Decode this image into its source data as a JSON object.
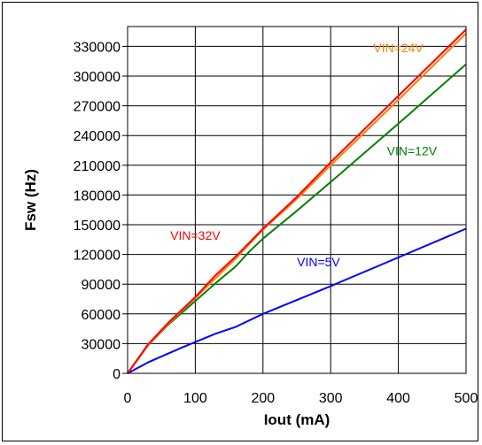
{
  "chart_data": {
    "type": "line",
    "title": "",
    "xlabel": "Iout (mA)",
    "ylabel": "Fsw (Hz)",
    "xlim": [
      0,
      500
    ],
    "ylim": [
      0,
      350000
    ],
    "xticks": [
      0,
      100,
      200,
      300,
      400,
      500
    ],
    "yticks": [
      0,
      30000,
      60000,
      90000,
      120000,
      150000,
      180000,
      210000,
      240000,
      270000,
      300000,
      330000
    ],
    "grid": true,
    "legend": "none",
    "series": [
      {
        "name": "VIN=5V",
        "color": "#0000ff",
        "x": [
          0,
          30,
          80,
          130,
          160,
          200,
          300,
          400,
          500
        ],
        "y": [
          0,
          11000,
          26000,
          40000,
          47000,
          60000,
          88000,
          117000,
          146000
        ]
      },
      {
        "name": "VIN=12V",
        "color": "#008000",
        "x": [
          0,
          30,
          60,
          100,
          130,
          160,
          180,
          200,
          250,
          300,
          400,
          500
        ],
        "y": [
          0,
          28000,
          49000,
          73000,
          91000,
          108000,
          123000,
          136000,
          164000,
          193000,
          252000,
          312000
        ]
      },
      {
        "name": "VIN=24V",
        "color": "#ff8000",
        "x": [
          0,
          30,
          60,
          100,
          130,
          160,
          200,
          250,
          300,
          400,
          500
        ],
        "y": [
          0,
          28000,
          50000,
          76000,
          96000,
          116000,
          145000,
          176000,
          210000,
          276000,
          343000
        ]
      },
      {
        "name": "VIN=32V",
        "color": "#ff0000",
        "x": [
          0,
          30,
          60,
          100,
          130,
          160,
          200,
          250,
          300,
          400,
          500
        ],
        "y": [
          0,
          29000,
          51000,
          77000,
          99000,
          118000,
          146000,
          178000,
          213000,
          280000,
          347000
        ]
      }
    ],
    "annotations": [
      {
        "text": "VIN=24V",
        "color": "#ff8000",
        "x": 400,
        "y": 324000
      },
      {
        "text": "VIN=12V",
        "color": "#008000",
        "x": 420,
        "y": 220000
      },
      {
        "text": "VIN=32V",
        "color": "#ff0000",
        "x": 100,
        "y": 135000
      },
      {
        "text": "VIN=5V",
        "color": "#0000ff",
        "x": 282,
        "y": 108000
      }
    ]
  }
}
